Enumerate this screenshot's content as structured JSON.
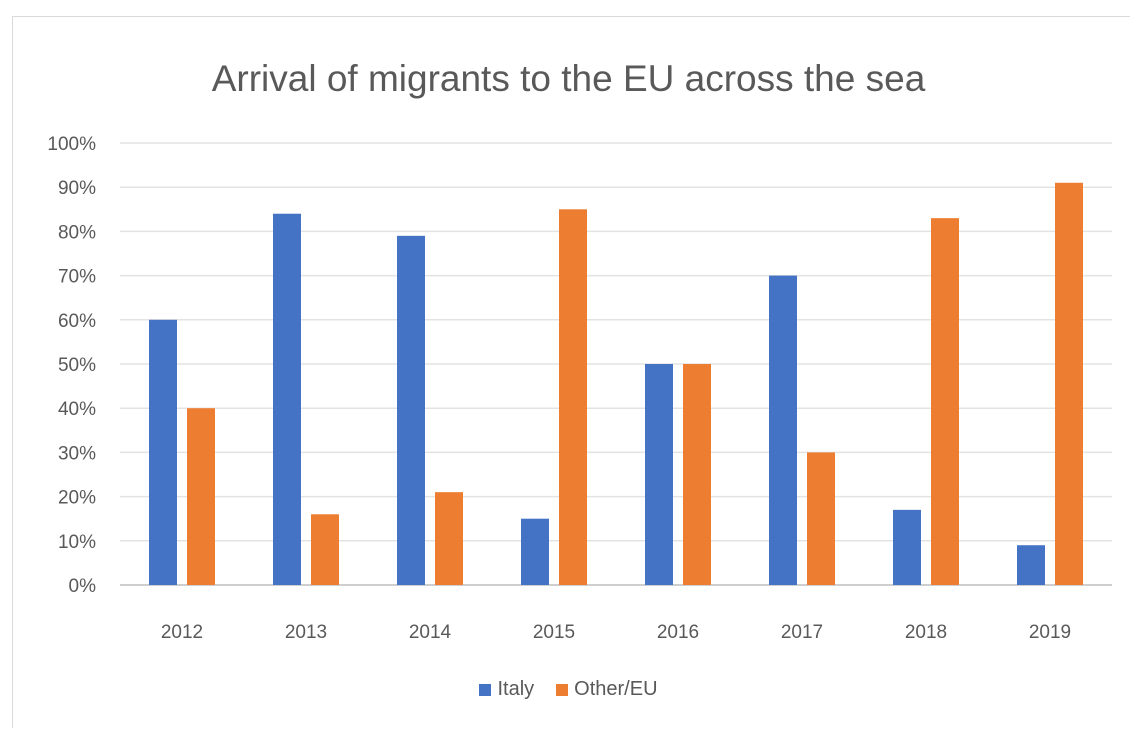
{
  "chart_data": {
    "type": "bar",
    "title": "Arrival of migrants to the EU across the sea",
    "categories": [
      "2012",
      "2013",
      "2014",
      "2015",
      "2016",
      "2017",
      "2018",
      "2019"
    ],
    "series": [
      {
        "name": "Italy",
        "color": "#4472c4",
        "values": [
          60,
          84,
          79,
          15,
          50,
          70,
          17,
          9
        ]
      },
      {
        "name": "Other/EU",
        "color": "#ed7d31",
        "values": [
          40,
          16,
          21,
          85,
          50,
          30,
          83,
          91
        ]
      }
    ],
    "yticks": [
      "0%",
      "10%",
      "20%",
      "30%",
      "40%",
      "50%",
      "60%",
      "70%",
      "80%",
      "90%",
      "100%"
    ],
    "ylim": [
      0,
      100
    ],
    "grid": true,
    "legend": "bottom"
  }
}
